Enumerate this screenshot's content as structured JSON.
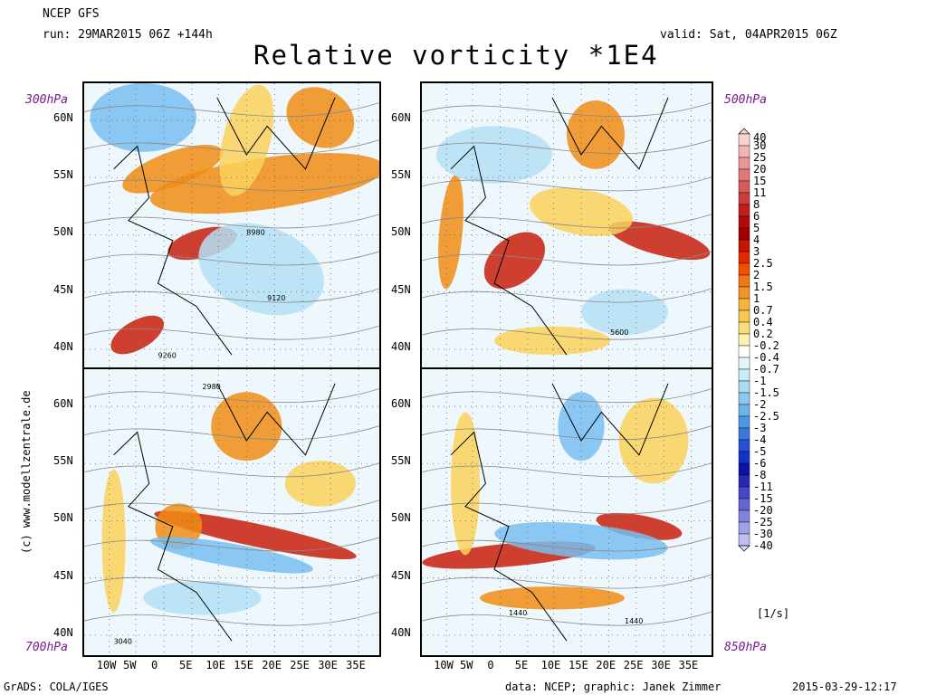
{
  "header": {
    "model": "NCEP GFS",
    "run": "run: 29MAR2015 06Z +144h",
    "valid": "valid: Sat, 04APR2015 06Z",
    "title": "Relative vorticity *1E4"
  },
  "footer": {
    "left": "GrADS: COLA/IGES",
    "data": "data: NCEP; graphic: Janek Zimmer",
    "stamp": "2015-03-29-12:17"
  },
  "credit": "(c) www.modellzentrale.de",
  "unit_label": "[1/s]",
  "colors": {
    "positive_strong": "#c81e0a",
    "positive_mid": "#f08c14",
    "positive_weak": "#fad25a",
    "negative_weak": "#b4e1f5",
    "negative_mid": "#78bef0",
    "level_label": "#7a1a8c"
  },
  "chart_data": {
    "type": "heatmap",
    "title": "Relative vorticity *1E4",
    "grid": true,
    "lat_ticks": [
      "60N",
      "55N",
      "50N",
      "45N",
      "40N"
    ],
    "lon_ticks": [
      "10W",
      "5W",
      "0",
      "5E",
      "10E",
      "15E",
      "20E",
      "25E",
      "30E",
      "35E"
    ],
    "panels": [
      {
        "level": "300hPa",
        "contour_labels": [
          "8980",
          "9120",
          "9260"
        ]
      },
      {
        "level": "500hPa",
        "contour_labels": [
          "5600"
        ]
      },
      {
        "level": "700hPa",
        "contour_labels": [
          "2980",
          "3040"
        ]
      },
      {
        "level": "850hPa",
        "contour_labels": [
          "1440",
          "1440"
        ]
      }
    ],
    "colorbar": {
      "levels": [
        "40",
        "30",
        "25",
        "20",
        "15",
        "11",
        "8",
        "6",
        "5",
        "4",
        "3",
        "2.5",
        "2",
        "1.5",
        "1",
        "0.7",
        "0.4",
        "0.2",
        "-0.2",
        "-0.4",
        "-0.7",
        "-1",
        "-1.5",
        "-2",
        "-2.5",
        "-3",
        "-4",
        "-5",
        "-6",
        "-8",
        "-11",
        "-15",
        "-20",
        "-25",
        "-30",
        "-40"
      ],
      "colors": [
        "#f9d2d2",
        "#f3b4b4",
        "#ea9696",
        "#e07878",
        "#d65a5a",
        "#cc3c3c",
        "#c21e1e",
        "#b40a0a",
        "#a00000",
        "#c81400",
        "#e62800",
        "#f05000",
        "#f07814",
        "#f09628",
        "#f5b43c",
        "#f5c850",
        "#fadc78",
        "#fff0b4",
        "#ffffff",
        "#e6f5fa",
        "#c8ebf5",
        "#aadcf5",
        "#8cc8f0",
        "#6eb4eb",
        "#5096e6",
        "#3c78dc",
        "#2850d2",
        "#1432c8",
        "#0a14a0",
        "#2828b4",
        "#4646c8",
        "#6464d2",
        "#8282dc",
        "#a0a0e6",
        "#bebef0",
        "#dcdcf8"
      ]
    }
  }
}
